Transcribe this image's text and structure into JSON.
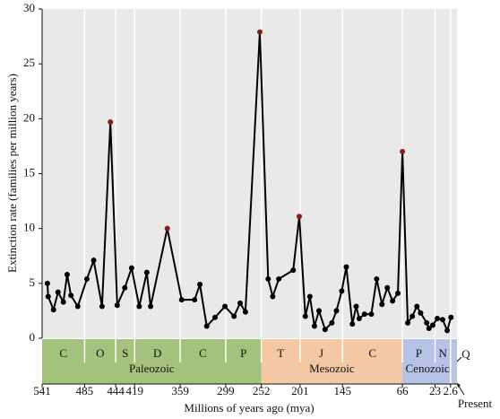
{
  "chart_data": {
    "type": "line",
    "y_label": "Extinction rate (families per million years)",
    "x_label": "Millions of years ago (mya)",
    "xlim": [
      541,
      0
    ],
    "ylim": [
      0,
      30
    ],
    "xticks": [
      541,
      485,
      444,
      419,
      359,
      299,
      252,
      201,
      145,
      66,
      23,
      2.6
    ],
    "yticks": [
      0,
      5,
      10,
      15,
      20,
      25,
      30
    ],
    "grid": true,
    "series": [
      {
        "color": "#000000",
        "x": [
          534,
          533,
          526,
          520,
          513,
          508,
          503,
          494,
          482,
          473,
          462,
          451,
          442,
          432,
          423,
          413,
          403,
          398,
          376,
          357,
          340,
          333,
          324,
          313,
          300,
          288,
          280,
          273,
          254,
          243,
          237,
          229,
          210,
          202,
          194,
          188,
          182,
          176,
          168,
          159,
          153,
          146,
          140,
          132,
          127,
          123,
          116,
          107,
          100,
          93,
          86,
          79,
          72,
          66,
          59,
          53,
          47,
          42,
          34,
          31,
          26,
          20,
          13,
          7,
          2
        ],
        "values": [
          5.0,
          3.8,
          2.6,
          4.2,
          3.3,
          5.8,
          3.9,
          2.9,
          5.4,
          7.1,
          2.9,
          19.7,
          3.0,
          4.6,
          6.4,
          2.9,
          6.0,
          2.9,
          10.0,
          3.5,
          3.5,
          4.9,
          1.1,
          1.9,
          2.9,
          2.0,
          3.2,
          2.4,
          27.9,
          5.4,
          3.8,
          5.4,
          6.2,
          11.1,
          2.0,
          3.8,
          1.1,
          2.5,
          0.8,
          1.4,
          2.5,
          4.3,
          6.5,
          1.3,
          2.9,
          1.8,
          2.2,
          2.2,
          5.4,
          3.1,
          4.6,
          3.4,
          4.1,
          17.0,
          1.4,
          2.0,
          2.9,
          2.3,
          1.4,
          0.9,
          1.2,
          1.8,
          1.7,
          0.7,
          1.9
        ],
        "point_colors": [
          "#000000",
          "#000000",
          "#000000",
          "#000000",
          "#000000",
          "#000000",
          "#000000",
          "#000000",
          "#000000",
          "#000000",
          "#000000",
          "#8b1a1a",
          "#000000",
          "#000000",
          "#000000",
          "#000000",
          "#000000",
          "#000000",
          "#8b1a1a",
          "#000000",
          "#000000",
          "#000000",
          "#000000",
          "#000000",
          "#000000",
          "#000000",
          "#000000",
          "#000000",
          "#8b1a1a",
          "#000000",
          "#000000",
          "#000000",
          "#000000",
          "#8b1a1a",
          "#000000",
          "#000000",
          "#000000",
          "#000000",
          "#000000",
          "#000000",
          "#000000",
          "#000000",
          "#000000",
          "#000000",
          "#000000",
          "#000000",
          "#000000",
          "#000000",
          "#000000",
          "#000000",
          "#000000",
          "#000000",
          "#000000",
          "#8b1a1a",
          "#000000",
          "#000000",
          "#000000",
          "#000000",
          "#000000",
          "#000000",
          "#000000",
          "#000000",
          "#000000",
          "#000000",
          "#000000"
        ]
      }
    ],
    "periods": [
      "C",
      "O",
      "S",
      "D",
      "C",
      "P",
      "T",
      "J",
      "C",
      "P",
      "N",
      "Q"
    ],
    "eras": [
      {
        "name": "Paleozoic",
        "color": "#a3c27c",
        "start": 541,
        "end": 252
      },
      {
        "name": "Mesozoic",
        "color": "#f3c8a2",
        "start": 252,
        "end": 66
      },
      {
        "name": "Cenozoic",
        "color": "#b5c3e6",
        "start": 66,
        "end": 0
      }
    ],
    "present_label": "Present"
  }
}
